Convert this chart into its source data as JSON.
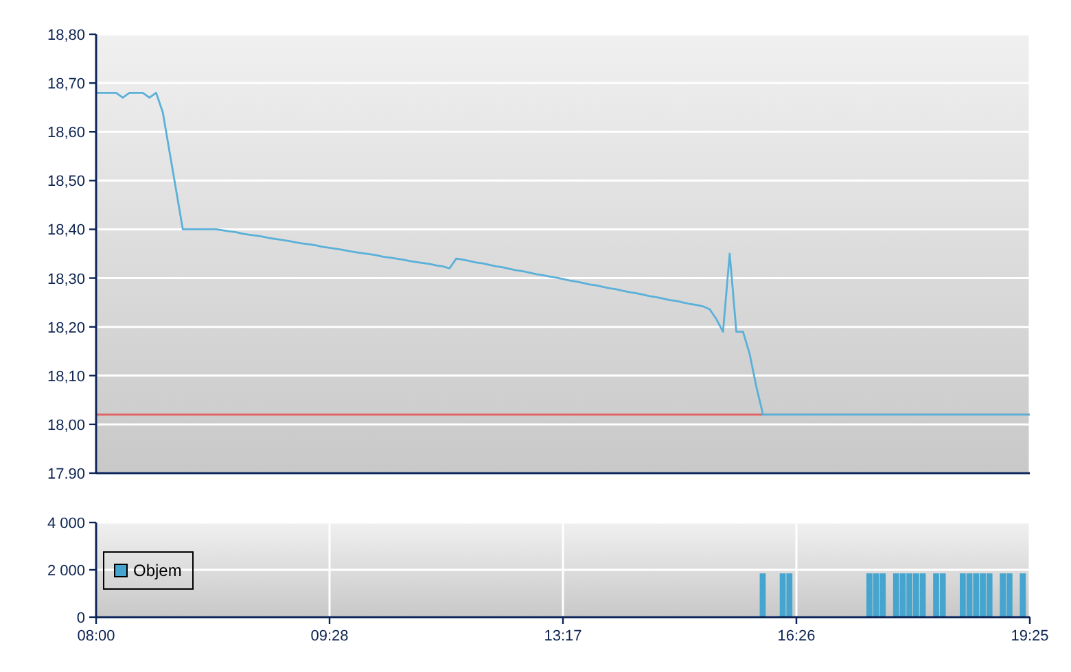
{
  "chart_data": [
    {
      "type": "line",
      "categories": [
        null,
        null,
        null,
        null,
        null,
        null,
        null,
        null,
        null,
        null,
        null,
        null,
        null,
        null,
        null,
        null,
        null,
        null,
        null,
        null,
        null,
        null,
        null,
        null,
        null,
        null,
        null,
        null,
        null,
        null,
        null,
        null,
        null,
        null,
        null,
        null,
        null,
        null,
        null,
        null,
        null,
        null,
        null,
        null,
        null,
        null,
        null,
        null,
        null,
        null,
        null,
        null,
        null,
        null,
        null,
        null,
        null,
        null,
        null,
        null,
        null,
        null,
        null,
        null,
        null,
        null,
        null,
        null,
        null,
        null,
        null,
        null,
        null,
        null,
        null,
        null,
        null,
        null,
        null,
        null,
        null,
        null,
        null,
        null,
        null,
        null,
        null,
        null,
        null,
        null,
        null,
        null,
        null,
        null,
        null,
        null,
        null,
        null,
        null,
        null,
        null,
        null,
        null,
        null,
        null,
        null,
        null,
        null,
        null,
        null,
        null,
        null,
        null,
        null,
        null,
        null,
        null,
        null,
        null,
        null,
        null,
        null,
        null,
        null,
        null,
        null,
        null,
        null,
        null,
        null,
        null,
        null,
        null,
        null,
        null,
        null,
        null,
        null,
        null,
        null,
        null
      ],
      "series": [
        {
          "color": "#5ab0d8",
          "values": [
            18.68,
            18.68,
            18.68,
            18.68,
            18.67,
            18.68,
            18.68,
            18.68,
            18.67,
            18.68,
            18.64,
            18.56,
            18.48,
            18.4,
            18.4,
            18.4,
            18.4,
            18.4,
            18.4,
            18.398,
            18.396,
            18.394,
            18.391,
            18.389,
            18.387,
            18.385,
            18.382,
            18.38,
            18.378,
            18.376,
            18.373,
            18.371,
            18.369,
            18.367,
            18.364,
            18.362,
            18.36,
            18.358,
            18.355,
            18.353,
            18.351,
            18.349,
            18.347,
            18.344,
            18.342,
            18.34,
            18.338,
            18.335,
            18.333,
            18.331,
            18.329,
            18.326,
            18.324,
            18.32,
            18.34,
            18.338,
            18.335,
            18.332,
            18.33,
            18.327,
            18.324,
            18.322,
            18.319,
            18.316,
            18.314,
            18.311,
            18.308,
            18.306,
            18.303,
            18.301,
            18.298,
            18.295,
            18.293,
            18.29,
            18.287,
            18.285,
            18.282,
            18.279,
            18.277,
            18.274,
            18.271,
            18.269,
            18.266,
            18.263,
            18.261,
            18.258,
            18.255,
            18.253,
            18.25,
            18.247,
            18.245,
            18.242,
            18.236,
            18.216,
            18.19,
            18.35,
            18.19,
            18.19,
            18.144,
            18.077,
            18.02,
            18.02,
            18.02,
            18.02,
            18.02,
            18.02,
            18.02,
            18.02,
            18.02,
            18.02,
            18.02,
            18.02,
            18.02,
            18.02,
            18.02,
            18.02,
            18.02,
            18.02,
            18.02,
            18.02,
            18.02,
            18.02,
            18.02,
            18.02,
            18.02,
            18.02,
            18.02,
            18.02,
            18.02,
            18.02,
            18.02,
            18.02,
            18.02,
            18.02,
            18.02,
            18.02,
            18.02,
            18.02,
            18.02,
            18.02,
            18.02
          ]
        }
      ],
      "ylim": [
        17.9,
        18.8
      ],
      "yticks": [
        {
          "value": 17.9,
          "label": "17.90"
        },
        {
          "value": 18,
          "label": "18,00"
        },
        {
          "value": 18.1,
          "label": "18,10"
        },
        {
          "value": 18.2,
          "label": "18,20"
        },
        {
          "value": 18.3,
          "label": "18,30"
        },
        {
          "value": 18.4,
          "label": "18,40"
        },
        {
          "value": 18.5,
          "label": "18,50"
        },
        {
          "value": 18.6,
          "label": "18,60"
        },
        {
          "value": 18.7,
          "label": "18,70"
        },
        {
          "value": 18.8,
          "label": "18,80"
        }
      ],
      "tick_labels": "y",
      "grid": true,
      "ref_lines": [
        {
          "axis": "y",
          "value": 18.02,
          "color": "#e06060"
        }
      ]
    },
    {
      "type": "bar",
      "categories": [
        "08:00",
        null,
        null,
        null,
        null,
        null,
        null,
        null,
        null,
        null,
        null,
        null,
        null,
        null,
        null,
        null,
        null,
        null,
        null,
        null,
        null,
        null,
        null,
        null,
        null,
        null,
        null,
        null,
        null,
        null,
        null,
        null,
        null,
        null,
        null,
        "09:28",
        null,
        null,
        null,
        null,
        null,
        null,
        null,
        null,
        null,
        null,
        null,
        null,
        null,
        null,
        null,
        null,
        null,
        null,
        null,
        null,
        null,
        null,
        null,
        null,
        null,
        null,
        null,
        null,
        null,
        null,
        null,
        null,
        null,
        null,
        "13:17",
        null,
        null,
        null,
        null,
        null,
        null,
        null,
        null,
        null,
        null,
        null,
        null,
        null,
        null,
        null,
        null,
        null,
        null,
        null,
        null,
        null,
        null,
        null,
        null,
        null,
        null,
        null,
        null,
        null,
        null,
        null,
        null,
        null,
        null,
        "16:26",
        null,
        null,
        null,
        null,
        null,
        null,
        null,
        null,
        null,
        null,
        null,
        null,
        null,
        null,
        null,
        null,
        null,
        null,
        null,
        null,
        null,
        null,
        null,
        null,
        null,
        null,
        null,
        null,
        null,
        null,
        null,
        null,
        null,
        null,
        "19:25"
      ],
      "series": [
        {
          "name": "Objem",
          "color": "#45a5ce",
          "values": [
            null,
            null,
            null,
            null,
            null,
            null,
            null,
            null,
            null,
            null,
            null,
            null,
            null,
            null,
            null,
            null,
            null,
            null,
            null,
            null,
            null,
            null,
            null,
            null,
            null,
            null,
            null,
            null,
            null,
            null,
            null,
            null,
            null,
            null,
            null,
            null,
            null,
            null,
            null,
            null,
            null,
            null,
            null,
            null,
            null,
            null,
            null,
            null,
            null,
            null,
            null,
            null,
            null,
            null,
            null,
            null,
            null,
            null,
            null,
            null,
            null,
            null,
            null,
            null,
            null,
            null,
            null,
            null,
            null,
            null,
            null,
            null,
            null,
            null,
            null,
            null,
            null,
            null,
            null,
            null,
            null,
            null,
            null,
            null,
            null,
            null,
            null,
            null,
            null,
            null,
            null,
            null,
            null,
            null,
            null,
            null,
            null,
            null,
            null,
            null,
            1850,
            null,
            null,
            1850,
            1850,
            null,
            null,
            null,
            null,
            null,
            null,
            null,
            null,
            null,
            null,
            null,
            1850,
            1850,
            1850,
            null,
            1850,
            1850,
            1850,
            1850,
            1850,
            null,
            1850,
            1850,
            null,
            null,
            1850,
            1850,
            1850,
            1850,
            1850,
            null,
            1850,
            1850,
            null,
            1850,
            null
          ]
        }
      ],
      "ylim": [
        0,
        4000
      ],
      "yticks": [
        0,
        {
          "value": 2000,
          "label": "2 000"
        },
        {
          "value": 4000,
          "label": "4 000"
        }
      ],
      "grid": true,
      "legend": "left"
    }
  ]
}
